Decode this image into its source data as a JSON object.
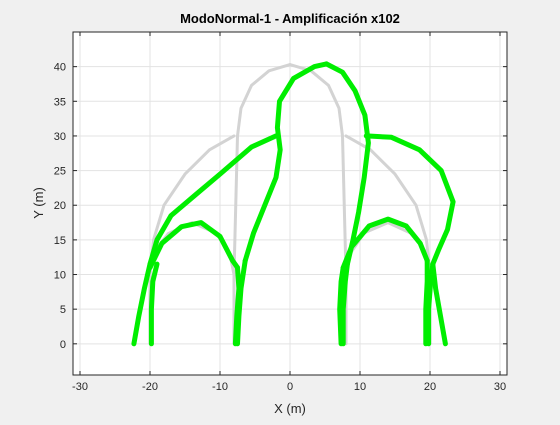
{
  "chart_data": {
    "type": "line",
    "title": "ModoNormal-1 - Amplificación x102",
    "xlabel": "X (m)",
    "ylabel": "Y (m)",
    "xlim": [
      -31,
      31
    ],
    "ylim": [
      -4.5,
      45
    ],
    "xticks": [
      -30,
      -20,
      -10,
      0,
      10,
      20,
      30
    ],
    "yticks": [
      0,
      5,
      10,
      15,
      20,
      25,
      30,
      35,
      40
    ],
    "grid": true,
    "series": [
      {
        "color": "#d3d3d3",
        "width": 3,
        "paths": [
          [
            [
              -20,
              0
            ],
            [
              -20,
              10
            ]
          ],
          [
            [
              -8,
              0
            ],
            [
              -8,
              10
            ]
          ],
          [
            [
              8,
              0
            ],
            [
              8,
              10
            ]
          ],
          [
            [
              20,
              0
            ],
            [
              20,
              10
            ]
          ],
          [
            [
              -20,
              10
            ],
            [
              -19.6,
              13
            ],
            [
              -17.4,
              15.9
            ],
            [
              -14,
              17.5
            ],
            [
              -10.6,
              16
            ],
            [
              -8.6,
              13
            ],
            [
              -8,
              10
            ]
          ],
          [
            [
              8,
              10
            ],
            [
              8.6,
              13
            ],
            [
              10.6,
              16
            ],
            [
              14,
              17.5
            ],
            [
              17.4,
              15.9
            ],
            [
              19.6,
              13
            ],
            [
              20,
              10
            ]
          ],
          [
            [
              -20,
              10
            ],
            [
              -19.5,
              15
            ],
            [
              -18,
              20
            ],
            [
              -15,
              24.5
            ],
            [
              -11.5,
              28
            ],
            [
              -8,
              30
            ]
          ],
          [
            [
              8,
              30
            ],
            [
              11.5,
              28
            ],
            [
              15,
              24.5
            ],
            [
              18,
              20
            ],
            [
              19.5,
              15
            ],
            [
              20,
              10
            ]
          ],
          [
            [
              -8,
              10
            ],
            [
              -7.5,
              30
            ]
          ],
          [
            [
              7.5,
              30
            ],
            [
              8,
              10
            ]
          ],
          [
            [
              -7.5,
              30
            ],
            [
              -7,
              34
            ],
            [
              -5.5,
              37.3
            ],
            [
              -3,
              39.4
            ],
            [
              0,
              40.3
            ]
          ],
          [
            [
              0,
              40.3
            ],
            [
              3,
              39.4
            ],
            [
              5.5,
              37.3
            ],
            [
              7,
              34
            ],
            [
              7.5,
              30
            ]
          ]
        ]
      },
      {
        "color": "#00ee00",
        "width": 5,
        "paths": [
          [
            [
              -22.3,
              0
            ],
            [
              -21.6,
              4
            ],
            [
              -20.8,
              8
            ],
            [
              -20,
              11.5
            ]
          ],
          [
            [
              -19.8,
              0
            ],
            [
              -19.8,
              5
            ],
            [
              -19.6,
              9
            ],
            [
              -19,
              11.5
            ]
          ],
          [
            [
              -7.8,
              0
            ],
            [
              -7.6,
              4
            ],
            [
              -7.3,
              8
            ],
            [
              -7.5,
              11
            ]
          ],
          [
            [
              -7.5,
              0
            ],
            [
              -7.3,
              4
            ],
            [
              -7,
              8
            ],
            [
              -6.4,
              12
            ]
          ],
          [
            [
              7.3,
              0
            ],
            [
              7.1,
              5
            ],
            [
              7.3,
              9
            ],
            [
              7.6,
              11
            ]
          ],
          [
            [
              7.6,
              0
            ],
            [
              7.6,
              5
            ],
            [
              7.9,
              9
            ],
            [
              8.2,
              11.5
            ]
          ],
          [
            [
              19.4,
              0
            ],
            [
              19.4,
              5
            ],
            [
              19.6,
              9
            ],
            [
              19.6,
              12
            ]
          ],
          [
            [
              19.8,
              0
            ],
            [
              19.8,
              5
            ],
            [
              20.1,
              9
            ],
            [
              20.4,
              11.5
            ]
          ],
          [
            [
              22.2,
              0
            ],
            [
              21.5,
              4
            ],
            [
              20.8,
              8
            ],
            [
              20.4,
              11.5
            ]
          ],
          [
            [
              -20,
              11
            ],
            [
              -18.3,
              14.5
            ],
            [
              -15.5,
              16.9
            ],
            [
              -12.7,
              17.5
            ],
            [
              -10,
              15.5
            ],
            [
              -8.2,
              12
            ],
            [
              -7.5,
              11
            ]
          ],
          [
            [
              7.6,
              11
            ],
            [
              8.8,
              14
            ],
            [
              11.3,
              17
            ],
            [
              14,
              18
            ],
            [
              16.6,
              17
            ],
            [
              18.6,
              14.5
            ],
            [
              19.6,
              12
            ]
          ],
          [
            [
              -20,
              11.5
            ],
            [
              -19,
              15
            ],
            [
              -17,
              18.5
            ],
            [
              -13.5,
              21.5
            ],
            [
              -10,
              24.5
            ],
            [
              -5.5,
              28.4
            ],
            [
              -2,
              30
            ]
          ],
          [
            [
              -6.4,
              12
            ],
            [
              -5.2,
              16
            ],
            [
              -3.6,
              20
            ],
            [
              -2,
              24
            ],
            [
              -1.4,
              28
            ],
            [
              -1.8,
              31.2
            ],
            [
              -1.5,
              35
            ],
            [
              0.5,
              38.3
            ],
            [
              3.5,
              40
            ],
            [
              5.2,
              40.4
            ]
          ],
          [
            [
              5.2,
              40.4
            ],
            [
              7.5,
              39.2
            ],
            [
              9.3,
              36.5
            ],
            [
              10.7,
              33
            ],
            [
              11.2,
              29
            ],
            [
              10.6,
              24
            ],
            [
              9.8,
              19
            ],
            [
              9,
              15
            ],
            [
              8.2,
              11.5
            ]
          ],
          [
            [
              10.9,
              30
            ],
            [
              14.5,
              29.8
            ],
            [
              18.5,
              28
            ],
            [
              21.6,
              25
            ],
            [
              23.3,
              20.5
            ],
            [
              22.5,
              16.5
            ],
            [
              21.2,
              13.5
            ],
            [
              20.4,
              11.5
            ]
          ]
        ]
      }
    ]
  }
}
